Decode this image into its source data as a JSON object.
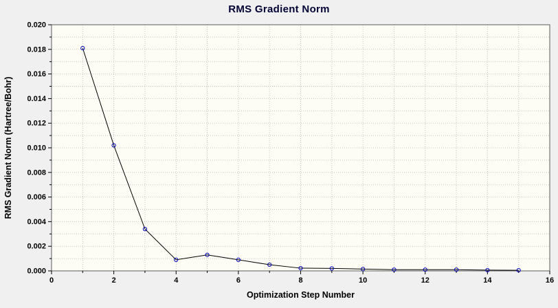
{
  "window": {
    "background_color": "#f0f0f0"
  },
  "chart_data": {
    "type": "line",
    "title": "RMS Gradient Norm",
    "xlabel": "Optimization Step Number",
    "ylabel": "RMS Gradient Norm (Hartree/Bohr)",
    "xlim": [
      0,
      16
    ],
    "ylim": [
      0.0,
      0.02
    ],
    "x_ticks": [
      0,
      2,
      4,
      6,
      8,
      10,
      12,
      14,
      16
    ],
    "x_tick_labels": [
      "0",
      "2",
      "4",
      "6",
      "8",
      "10",
      "12",
      "14",
      "16"
    ],
    "y_ticks": [
      0.0,
      0.002,
      0.004,
      0.006,
      0.008,
      0.01,
      0.012,
      0.014,
      0.016,
      0.018,
      0.02
    ],
    "y_tick_labels": [
      "0.000",
      "0.002",
      "0.004",
      "0.006",
      "0.008",
      "0.010",
      "0.012",
      "0.014",
      "0.016",
      "0.018",
      "0.020"
    ],
    "x": [
      1,
      2,
      3,
      4,
      5,
      6,
      7,
      8,
      9,
      10,
      11,
      12,
      13,
      14,
      15
    ],
    "y": [
      0.0181,
      0.0102,
      0.0034,
      0.0009,
      0.0013,
      0.0009,
      0.0005,
      0.00022,
      0.0002,
      0.00015,
      0.0001,
      0.0001,
      0.0001,
      6e-05,
      5e-05
    ],
    "grid": true,
    "legend": "none",
    "colors": {
      "plot_background": "#fdfdf5",
      "grid": "#c4c4c4",
      "line": "#000000",
      "marker": "#0000bb",
      "border": "#5a5a5a",
      "tick": "#000000"
    }
  }
}
